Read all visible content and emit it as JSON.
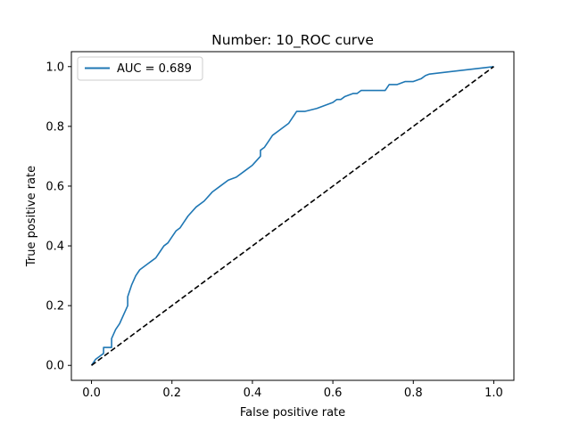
{
  "chart_data": {
    "type": "line",
    "title": "Number: 10_ROC curve",
    "xlabel": "False positive rate",
    "ylabel": "True positive rate",
    "xlim": [
      -0.05,
      1.05
    ],
    "ylim": [
      -0.05,
      1.05
    ],
    "xticks": [
      0.0,
      0.2,
      0.4,
      0.6,
      0.8,
      1.0
    ],
    "yticks": [
      0.0,
      0.2,
      0.4,
      0.6,
      0.8,
      1.0
    ],
    "xtick_labels": [
      "0.0",
      "0.2",
      "0.4",
      "0.6",
      "0.8",
      "1.0"
    ],
    "ytick_labels": [
      "0.0",
      "0.2",
      "0.4",
      "0.6",
      "0.8",
      "1.0"
    ],
    "grid": false,
    "legend": {
      "position": "upper-left",
      "entries": [
        "AUC = 0.689"
      ]
    },
    "series": [
      {
        "name": "AUC = 0.689",
        "color": "#1f77b4",
        "style": "solid",
        "x": [
          0.0,
          0.01,
          0.02,
          0.03,
          0.03,
          0.05,
          0.05,
          0.06,
          0.07,
          0.08,
          0.09,
          0.09,
          0.1,
          0.11,
          0.12,
          0.13,
          0.14,
          0.15,
          0.16,
          0.17,
          0.18,
          0.19,
          0.2,
          0.21,
          0.22,
          0.23,
          0.24,
          0.26,
          0.28,
          0.3,
          0.32,
          0.34,
          0.36,
          0.38,
          0.4,
          0.42,
          0.42,
          0.43,
          0.44,
          0.45,
          0.47,
          0.49,
          0.5,
          0.51,
          0.53,
          0.56,
          0.56,
          0.58,
          0.6,
          0.61,
          0.62,
          0.63,
          0.65,
          0.66,
          0.67,
          0.68,
          0.7,
          0.73,
          0.74,
          0.76,
          0.78,
          0.8,
          0.82,
          0.83,
          0.84,
          1.0
        ],
        "y": [
          0.0,
          0.02,
          0.03,
          0.04,
          0.06,
          0.06,
          0.09,
          0.12,
          0.14,
          0.17,
          0.2,
          0.23,
          0.27,
          0.3,
          0.32,
          0.33,
          0.34,
          0.35,
          0.36,
          0.38,
          0.4,
          0.41,
          0.43,
          0.45,
          0.46,
          0.48,
          0.5,
          0.53,
          0.55,
          0.58,
          0.6,
          0.62,
          0.63,
          0.65,
          0.67,
          0.7,
          0.72,
          0.73,
          0.75,
          0.77,
          0.79,
          0.81,
          0.83,
          0.85,
          0.85,
          0.86,
          0.86,
          0.87,
          0.88,
          0.89,
          0.89,
          0.9,
          0.91,
          0.91,
          0.92,
          0.92,
          0.92,
          0.92,
          0.94,
          0.94,
          0.95,
          0.95,
          0.96,
          0.97,
          0.975,
          1.0
        ]
      },
      {
        "name": "",
        "color": "#000000",
        "style": "dashed",
        "x": [
          0.0,
          1.0
        ],
        "y": [
          0.0,
          1.0
        ]
      }
    ]
  }
}
